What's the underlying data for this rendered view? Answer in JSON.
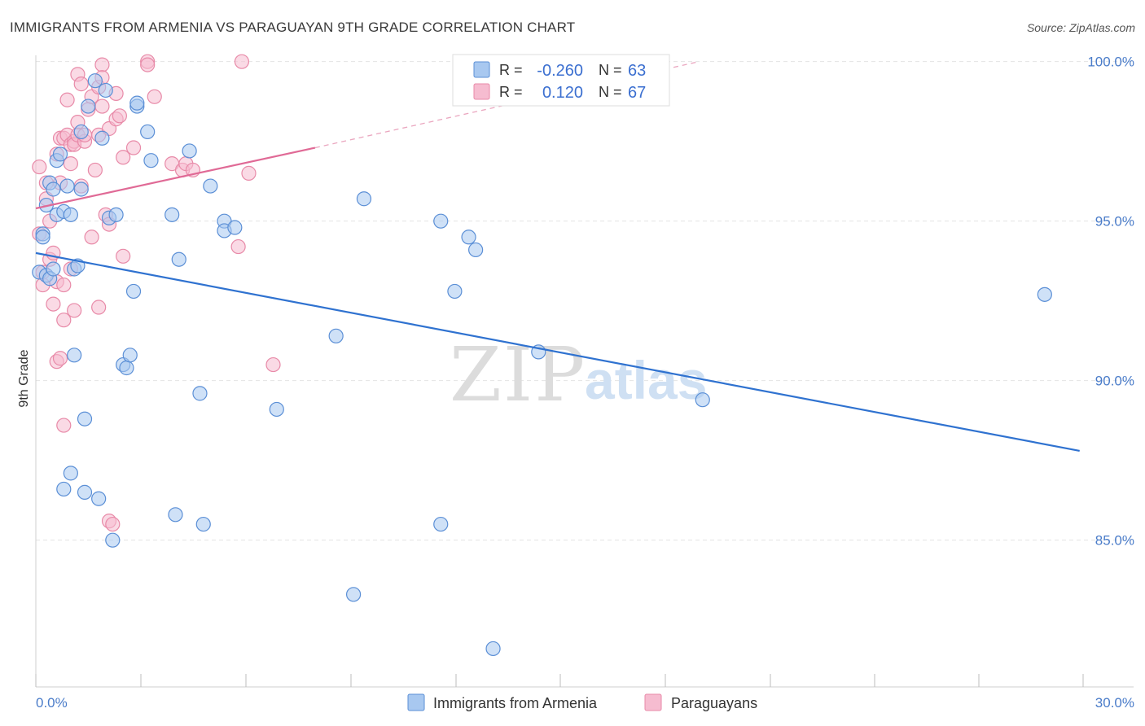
{
  "title": "IMMIGRANTS FROM ARMENIA VS PARAGUAYAN 9TH GRADE CORRELATION CHART",
  "source": "Source: ZipAtlas.com",
  "watermark": {
    "zip": "ZIP",
    "atlas": "atlas"
  },
  "colors": {
    "blue_fill": "#a8c8f0",
    "blue_stroke": "#5b8fd6",
    "blue_line": "#2f72d0",
    "pink_fill": "#f6bcd0",
    "pink_stroke": "#e88aa8",
    "pink_line": "#e06a96",
    "grid": "#e4e4e4",
    "tick_label": "#4a7cc9"
  },
  "legend": {
    "r_label": "R =",
    "n_label": "N =",
    "rows": [
      {
        "series": "blue",
        "r": "-0.260",
        "n": "63"
      },
      {
        "series": "pink",
        "r": "0.120",
        "n": "67"
      }
    ]
  },
  "chart_data": {
    "type": "scatter",
    "title": "IMMIGRANTS FROM ARMENIA VS PARAGUAYAN 9TH GRADE CORRELATION CHART",
    "xlabel": "",
    "ylabel": "9th Grade",
    "xlim": [
      0,
      30
    ],
    "ylim": [
      80.4,
      100.4
    ],
    "x_ticks": [
      {
        "v": 0,
        "label": "0.0%"
      },
      {
        "v": 30,
        "label": "30.0%"
      }
    ],
    "y_ticks": [
      {
        "v": 100,
        "label": "100.0%"
      },
      {
        "v": 95,
        "label": "95.0%"
      },
      {
        "v": 90,
        "label": "90.0%"
      },
      {
        "v": 85,
        "label": "85.0%"
      }
    ],
    "grid": true,
    "legend_position": "bottom",
    "series": [
      {
        "name": "Immigrants from Armenia",
        "color": "blue",
        "trend": {
          "x0": 0,
          "y0": 94.0,
          "x1": 29.9,
          "y1": 87.8
        },
        "points": [
          [
            0.1,
            93.4
          ],
          [
            0.2,
            94.6
          ],
          [
            0.3,
            95.5
          ],
          [
            0.3,
            93.3
          ],
          [
            0.4,
            96.2
          ],
          [
            0.4,
            93.2
          ],
          [
            0.5,
            96.0
          ],
          [
            0.5,
            93.5
          ],
          [
            0.6,
            96.9
          ],
          [
            0.6,
            95.2
          ],
          [
            0.7,
            97.1
          ],
          [
            0.8,
            86.6
          ],
          [
            0.8,
            95.3
          ],
          [
            0.9,
            96.1
          ],
          [
            1.0,
            95.2
          ],
          [
            1.0,
            87.1
          ],
          [
            1.1,
            93.5
          ],
          [
            1.1,
            90.8
          ],
          [
            1.2,
            93.6
          ],
          [
            1.3,
            97.8
          ],
          [
            1.3,
            96.0
          ],
          [
            1.4,
            88.8
          ],
          [
            1.4,
            86.5
          ],
          [
            1.5,
            98.6
          ],
          [
            1.7,
            99.4
          ],
          [
            1.8,
            86.3
          ],
          [
            1.9,
            97.6
          ],
          [
            2.0,
            99.1
          ],
          [
            2.1,
            95.1
          ],
          [
            2.2,
            85.0
          ],
          [
            2.3,
            95.2
          ],
          [
            2.5,
            90.5
          ],
          [
            2.6,
            90.4
          ],
          [
            2.7,
            90.8
          ],
          [
            2.8,
            92.8
          ],
          [
            2.9,
            98.6
          ],
          [
            2.9,
            98.7
          ],
          [
            3.2,
            97.8
          ],
          [
            3.3,
            96.9
          ],
          [
            3.9,
            95.2
          ],
          [
            4.0,
            85.8
          ],
          [
            4.1,
            93.8
          ],
          [
            4.4,
            97.2
          ],
          [
            4.7,
            89.6
          ],
          [
            4.8,
            85.5
          ],
          [
            5.0,
            96.1
          ],
          [
            5.4,
            95.0
          ],
          [
            5.4,
            94.7
          ],
          [
            5.7,
            94.8
          ],
          [
            6.9,
            89.1
          ],
          [
            8.6,
            91.4
          ],
          [
            9.1,
            83.3
          ],
          [
            9.4,
            95.7
          ],
          [
            11.6,
            95.0
          ],
          [
            11.6,
            85.5
          ],
          [
            12.0,
            92.8
          ],
          [
            12.4,
            94.5
          ],
          [
            12.6,
            94.1
          ],
          [
            13.1,
            81.6
          ],
          [
            14.4,
            90.9
          ],
          [
            19.1,
            89.4
          ],
          [
            28.9,
            92.7
          ],
          [
            0.2,
            94.5
          ]
        ]
      },
      {
        "name": "Paraguayans",
        "color": "pink",
        "trend": {
          "x0": 0,
          "y0": 95.4,
          "x1": 8.0,
          "y1": 97.3
        },
        "trend_dashed": {
          "x0": 8.0,
          "y0": 97.3,
          "x1": 19.0,
          "y1": 100.0
        },
        "points": [
          [
            0.1,
            96.7
          ],
          [
            0.1,
            94.6
          ],
          [
            0.2,
            93.4
          ],
          [
            0.2,
            93.0
          ],
          [
            0.3,
            96.2
          ],
          [
            0.3,
            95.7
          ],
          [
            0.4,
            95.0
          ],
          [
            0.4,
            93.8
          ],
          [
            0.5,
            92.4
          ],
          [
            0.5,
            94.0
          ],
          [
            0.6,
            97.1
          ],
          [
            0.6,
            93.1
          ],
          [
            0.6,
            90.6
          ],
          [
            0.7,
            96.2
          ],
          [
            0.7,
            97.6
          ],
          [
            0.7,
            90.7
          ],
          [
            0.8,
            97.6
          ],
          [
            0.8,
            93.0
          ],
          [
            0.8,
            91.9
          ],
          [
            0.8,
            88.6
          ],
          [
            0.9,
            98.8
          ],
          [
            0.9,
            97.7
          ],
          [
            1.0,
            96.8
          ],
          [
            1.0,
            97.4
          ],
          [
            1.0,
            93.5
          ],
          [
            1.1,
            97.5
          ],
          [
            1.1,
            97.4
          ],
          [
            1.1,
            92.2
          ],
          [
            1.2,
            99.6
          ],
          [
            1.2,
            98.1
          ],
          [
            1.2,
            97.7
          ],
          [
            1.3,
            99.3
          ],
          [
            1.3,
            96.1
          ],
          [
            1.4,
            97.5
          ],
          [
            1.4,
            97.7
          ],
          [
            1.5,
            98.5
          ],
          [
            1.6,
            98.9
          ],
          [
            1.6,
            94.5
          ],
          [
            1.7,
            96.6
          ],
          [
            1.8,
            99.2
          ],
          [
            1.8,
            97.7
          ],
          [
            1.8,
            92.3
          ],
          [
            1.9,
            99.9
          ],
          [
            1.9,
            98.6
          ],
          [
            1.9,
            99.5
          ],
          [
            2.0,
            95.2
          ],
          [
            2.1,
            94.9
          ],
          [
            2.1,
            97.9
          ],
          [
            2.1,
            85.6
          ],
          [
            2.2,
            85.5
          ],
          [
            2.3,
            99.0
          ],
          [
            2.3,
            98.2
          ],
          [
            2.4,
            98.3
          ],
          [
            2.5,
            97.0
          ],
          [
            2.5,
            93.9
          ],
          [
            2.8,
            97.3
          ],
          [
            3.2,
            100.0
          ],
          [
            3.4,
            98.9
          ],
          [
            3.9,
            96.8
          ],
          [
            4.2,
            96.6
          ],
          [
            4.3,
            96.8
          ],
          [
            4.5,
            96.6
          ],
          [
            5.8,
            94.2
          ],
          [
            6.1,
            96.5
          ],
          [
            6.8,
            90.5
          ],
          [
            5.9,
            100.0
          ],
          [
            3.2,
            99.9
          ]
        ]
      }
    ]
  }
}
